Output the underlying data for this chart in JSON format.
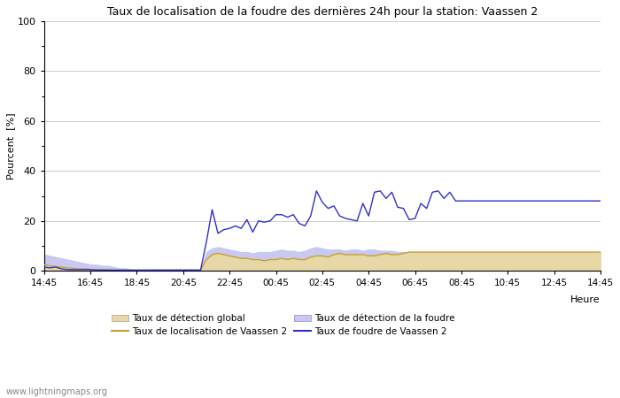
{
  "title": "Taux de localisation de la foudre des dernières 24h pour la station: Vaassen 2",
  "xlabel": "Heure",
  "ylabel": "Pourcent  [%]",
  "watermark": "www.lightningmaps.org",
  "xlim": [
    0,
    24
  ],
  "ylim": [
    0,
    100
  ],
  "yticks": [
    0,
    20,
    40,
    60,
    80,
    100
  ],
  "xtick_labels": [
    "14:45",
    "16:45",
    "18:45",
    "20:45",
    "22:45",
    "00:45",
    "02:45",
    "04:45",
    "06:45",
    "08:45",
    "10:45",
    "12:45",
    "14:45"
  ],
  "xtick_positions": [
    0,
    2,
    4,
    6,
    8,
    10,
    12,
    14,
    16,
    18,
    20,
    22,
    24
  ],
  "color_global_fill": "#e8d8a8",
  "color_global_line": "#c8a030",
  "color_detection_fill": "#c8c8f0",
  "color_vaassen_line": "#3030cc",
  "color_localisation_line": "#c8a030",
  "legend_labels": [
    "Taux de détection global",
    "Taux de localisation de Vaassen 2",
    "Taux de détection de la foudre",
    "Taux de foudre de Vaassen 2"
  ],
  "global_detection_y": [
    2.5,
    2.0,
    1.8,
    1.5,
    1.2,
    1.0,
    0.8,
    0.8,
    0.6,
    0.5,
    0.5,
    0.4,
    0.3,
    0.2,
    0.2,
    0.2,
    0.2,
    0.2,
    0.2,
    0.3,
    0.3,
    0.3,
    0.3,
    0.3,
    0.3,
    0.3,
    0.3,
    0.3,
    4.5,
    6.5,
    7.0,
    6.5,
    6.0,
    5.5,
    5.0,
    5.0,
    4.5,
    4.5,
    4.0,
    4.5,
    4.5,
    5.0,
    4.5,
    5.0,
    4.5,
    4.5,
    5.5,
    6.0,
    6.0,
    5.5,
    6.5,
    7.0,
    6.5,
    6.5,
    6.5,
    6.5,
    6.0,
    6.0,
    6.5,
    7.0,
    6.5,
    6.5,
    7.0,
    7.5,
    7.5,
    7.5,
    7.5,
    7.5,
    7.5,
    7.5,
    7.5,
    7.5,
    7.5,
    7.5,
    7.5,
    7.5,
    7.5,
    7.5,
    7.5,
    7.5,
    7.5,
    7.5,
    7.5,
    7.5,
    7.5,
    7.5,
    7.5,
    7.5,
    7.5,
    7.5,
    7.5,
    7.5,
    7.5,
    7.5,
    7.5,
    7.5
  ],
  "detection_foudre_y": [
    6.5,
    6.0,
    5.5,
    5.0,
    4.5,
    4.0,
    3.5,
    3.0,
    2.5,
    2.5,
    2.0,
    2.0,
    1.5,
    1.0,
    1.0,
    0.5,
    0.5,
    0.5,
    0.5,
    0.5,
    0.5,
    0.5,
    0.5,
    0.5,
    0.5,
    0.5,
    0.5,
    0.5,
    7.5,
    9.0,
    9.5,
    9.0,
    8.5,
    8.0,
    7.5,
    7.5,
    7.0,
    7.5,
    7.5,
    7.5,
    8.0,
    8.5,
    8.0,
    8.0,
    7.5,
    8.0,
    9.0,
    9.5,
    9.0,
    8.5,
    8.5,
    8.5,
    8.0,
    8.5,
    8.5,
    8.0,
    8.5,
    8.5,
    8.0,
    8.0,
    8.0,
    7.5,
    7.5,
    7.0,
    7.0,
    7.5,
    7.5,
    7.0,
    7.0,
    7.0,
    7.0,
    7.0,
    6.5,
    6.5,
    6.5,
    6.5,
    6.5,
    6.5,
    6.5,
    6.5,
    6.5,
    6.5,
    6.5,
    6.5,
    6.5,
    6.5,
    6.5,
    6.5,
    6.5,
    6.5,
    6.5,
    6.5,
    6.5,
    6.5,
    6.5,
    6.5
  ],
  "localisation_vaassen_y": [
    2.5,
    2.0,
    1.8,
    1.5,
    1.2,
    1.0,
    0.8,
    0.8,
    0.6,
    0.5,
    0.5,
    0.4,
    0.3,
    0.2,
    0.2,
    0.2,
    0.2,
    0.2,
    0.2,
    0.3,
    0.3,
    0.3,
    0.3,
    0.3,
    0.3,
    0.3,
    0.3,
    0.3,
    4.5,
    6.5,
    7.0,
    6.5,
    6.0,
    5.5,
    5.0,
    5.0,
    4.5,
    4.5,
    4.0,
    4.5,
    4.5,
    5.0,
    4.5,
    5.0,
    4.5,
    4.5,
    5.5,
    6.0,
    6.0,
    5.5,
    6.5,
    7.0,
    6.5,
    6.5,
    6.5,
    6.5,
    6.0,
    6.0,
    6.5,
    7.0,
    6.5,
    6.5,
    7.0,
    7.5,
    7.5,
    7.5,
    7.5,
    7.5,
    7.5,
    7.5,
    7.5,
    7.5,
    7.5,
    7.5,
    7.5,
    7.5,
    7.5,
    7.5,
    7.5,
    7.5,
    7.5,
    7.5,
    7.5,
    7.5,
    7.5,
    7.5,
    7.5,
    7.5,
    7.5,
    7.5,
    7.5,
    7.5,
    7.5,
    7.5,
    7.5,
    7.5
  ],
  "vaassen_y": [
    1.5,
    1.2,
    1.5,
    0.8,
    0.5,
    0.5,
    0.5,
    0.5,
    0.5,
    0.3,
    0.3,
    0.3,
    0.3,
    0.3,
    0.3,
    0.3,
    0.3,
    0.3,
    0.3,
    0.3,
    0.3,
    0.3,
    0.3,
    0.3,
    0.3,
    0.3,
    0.3,
    0.3,
    11.5,
    24.5,
    15.0,
    16.5,
    17.0,
    18.0,
    17.0,
    20.5,
    15.5,
    20.0,
    19.5,
    20.0,
    22.5,
    22.5,
    21.5,
    22.5,
    19.0,
    18.0,
    22.0,
    32.0,
    27.5,
    25.0,
    26.0,
    22.0,
    21.0,
    20.5,
    20.0,
    27.0,
    22.0,
    31.5,
    32.0,
    29.0,
    31.5,
    25.5,
    25.0,
    20.5,
    21.0,
    27.0,
    25.0,
    31.5,
    32.0,
    29.0,
    31.5,
    28.0,
    28.0,
    28.0,
    28.0,
    28.0,
    28.0,
    28.0,
    28.0,
    28.0,
    28.0,
    28.0,
    28.0,
    28.0,
    28.0,
    28.0,
    28.0,
    28.0,
    28.0,
    28.0,
    28.0,
    28.0,
    28.0,
    28.0,
    28.0,
    28.0
  ],
  "x_data": [
    0.0,
    0.25,
    0.5,
    0.75,
    1.0,
    1.25,
    1.5,
    1.75,
    2.0,
    2.25,
    2.5,
    2.75,
    3.0,
    3.25,
    3.5,
    3.75,
    4.0,
    4.25,
    4.5,
    4.75,
    5.0,
    5.25,
    5.5,
    5.75,
    6.0,
    6.25,
    6.5,
    6.75,
    7.0,
    7.25,
    7.5,
    7.75,
    8.0,
    8.25,
    8.5,
    8.75,
    9.0,
    9.25,
    9.5,
    9.75,
    10.0,
    10.25,
    10.5,
    10.75,
    11.0,
    11.25,
    11.5,
    11.75,
    12.0,
    12.25,
    12.5,
    12.75,
    13.0,
    13.25,
    13.5,
    13.75,
    14.0,
    14.25,
    14.5,
    14.75,
    15.0,
    15.25,
    15.5,
    15.75,
    16.0,
    16.25,
    16.5,
    16.75,
    17.0,
    17.25,
    17.5,
    17.75,
    18.0,
    18.25,
    18.5,
    18.75,
    19.0,
    19.25,
    19.5,
    19.75,
    20.0,
    20.25,
    20.5,
    20.75,
    21.0,
    21.25,
    21.5,
    21.75,
    22.0,
    22.25,
    22.5,
    22.75,
    23.0,
    23.25,
    23.5,
    24.0
  ]
}
